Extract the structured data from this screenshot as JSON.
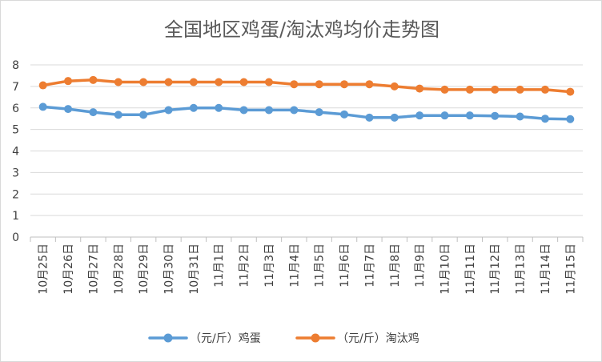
{
  "chart_data": {
    "type": "line",
    "title": "全国地区鸡蛋/淘汰鸡均价走势图",
    "xlabel": "",
    "ylabel": "",
    "ylim": [
      0,
      8
    ],
    "yticks": [
      0,
      1,
      2,
      3,
      4,
      5,
      6,
      7,
      8
    ],
    "grid": "horizontal",
    "legend_position": "bottom",
    "categories": [
      "10月25日",
      "10月26日",
      "10月27日",
      "10月28日",
      "10月29日",
      "10月30日",
      "10月31日",
      "11月1日",
      "11月2日",
      "11月3日",
      "11月4日",
      "11月5日",
      "11月6日",
      "11月7日",
      "11月8日",
      "11月9日",
      "11月10日",
      "11月11日",
      "11月12日",
      "11月13日",
      "11月14日",
      "11月15日"
    ],
    "series": [
      {
        "name": "（元/斤）鸡蛋",
        "color": "#5b9bd5",
        "values": [
          6.05,
          5.95,
          5.8,
          5.68,
          5.68,
          5.9,
          6.0,
          6.0,
          5.9,
          5.9,
          5.9,
          5.8,
          5.7,
          5.55,
          5.55,
          5.65,
          5.65,
          5.65,
          5.63,
          5.6,
          5.5,
          5.48
        ]
      },
      {
        "name": "（元/斤）淘汰鸡",
        "color": "#ed7d31",
        "values": [
          7.05,
          7.25,
          7.3,
          7.2,
          7.2,
          7.2,
          7.2,
          7.2,
          7.2,
          7.2,
          7.1,
          7.1,
          7.1,
          7.1,
          7.0,
          6.9,
          6.85,
          6.85,
          6.85,
          6.85,
          6.85,
          6.75
        ]
      }
    ]
  }
}
